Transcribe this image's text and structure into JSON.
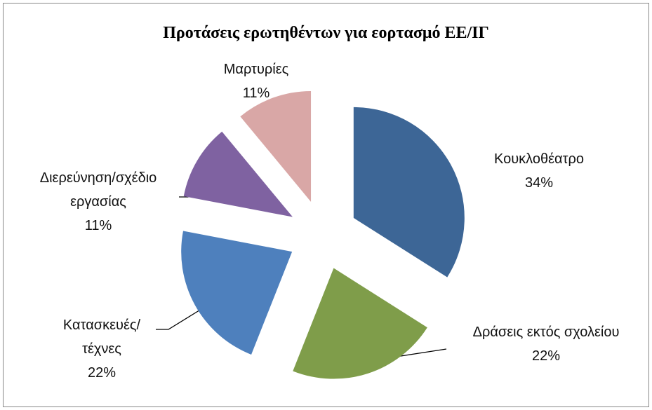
{
  "chart_data": {
    "type": "pie",
    "title": "Προτάσεις ερωτηθέντων για εορτασμό ΕΕ/ΙΓ",
    "categories": [
      "Κουκλοθέατρο",
      "Δράσεις εκτός σχολείου",
      "Κατασκευές/ τέχνες",
      "Διερεύνηση/σχέδιο εργασίας",
      "Μαρτυρίες"
    ],
    "values": [
      34,
      22,
      22,
      11,
      11
    ],
    "value_labels": [
      "34%",
      "22%",
      "22%",
      "11%",
      "11%"
    ],
    "colors": [
      "#3d6696",
      "#7f9d4a",
      "#4e80bd",
      "#7f62a1",
      "#d9a7a6"
    ]
  }
}
